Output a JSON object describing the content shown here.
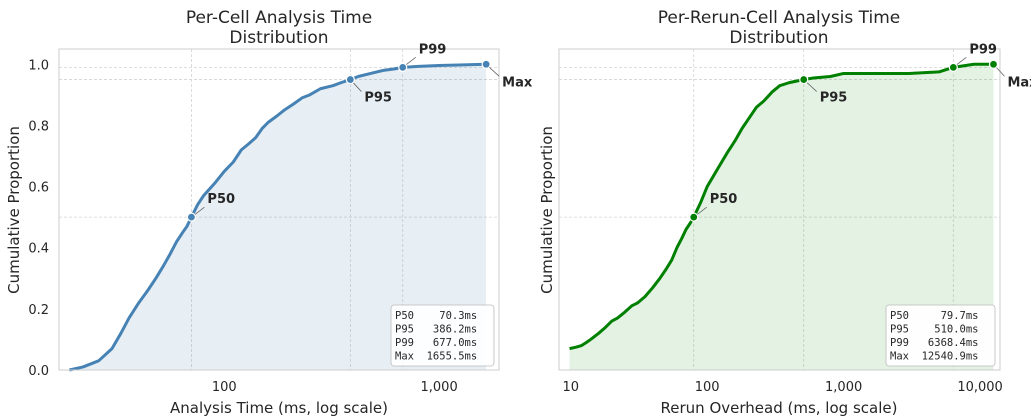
{
  "chart_data": [
    {
      "type": "line",
      "title_lines": [
        "Per-Cell Analysis Time",
        "Distribution"
      ],
      "xlabel": "Analysis Time (ms, log scale)",
      "ylabel": "Cumulative Proportion",
      "x_scale": "log",
      "xlim": [
        17,
        1900
      ],
      "ylim": [
        0,
        1.05
      ],
      "x_ticks": [
        {
          "value": 100,
          "label": "100"
        },
        {
          "value": 1000,
          "label": "1,000"
        }
      ],
      "y_ticks": [
        {
          "value": 0.0,
          "label": "0.0"
        },
        {
          "value": 0.2,
          "label": "0.2"
        },
        {
          "value": 0.4,
          "label": "0.4"
        },
        {
          "value": 0.6,
          "label": "0.6"
        },
        {
          "value": 0.8,
          "label": "0.8"
        },
        {
          "value": 1.0,
          "label": "1.0"
        }
      ],
      "color": "#4682b4",
      "fill_color": "#4682b4",
      "grid": true,
      "series": [
        {
          "x": [
            19,
            22,
            26,
            30,
            33,
            36,
            40,
            44,
            48,
            52,
            56,
            60,
            64,
            67,
            70.3,
            75,
            80,
            90,
            100,
            110,
            120,
            130,
            140,
            150,
            160,
            175,
            190,
            210,
            230,
            250,
            280,
            320,
            350,
            386.2,
            420,
            480,
            550,
            620,
            677,
            800,
            1000,
            1300,
            1655.5
          ],
          "y": [
            0.0,
            0.01,
            0.03,
            0.07,
            0.12,
            0.17,
            0.22,
            0.26,
            0.3,
            0.34,
            0.38,
            0.42,
            0.45,
            0.47,
            0.5,
            0.54,
            0.57,
            0.61,
            0.65,
            0.68,
            0.72,
            0.74,
            0.76,
            0.79,
            0.81,
            0.83,
            0.85,
            0.87,
            0.89,
            0.9,
            0.92,
            0.93,
            0.94,
            0.95,
            0.96,
            0.97,
            0.98,
            0.985,
            0.99,
            0.993,
            0.996,
            0.998,
            1.0
          ]
        }
      ],
      "markers": [
        {
          "label": "P50",
          "x": 70.3,
          "y": 0.5
        },
        {
          "label": "P95",
          "x": 386.2,
          "y": 0.95
        },
        {
          "label": "P99",
          "x": 677.0,
          "y": 0.99
        },
        {
          "label": "Max",
          "x": 1655.5,
          "y": 1.0
        }
      ],
      "stats_box": [
        "P50    70.3ms",
        "P95   386.2ms",
        "P99   677.0ms",
        "Max  1655.5ms"
      ]
    },
    {
      "type": "line",
      "title_lines": [
        "Per-Rerun-Cell Analysis Time",
        "Distribution"
      ],
      "xlabel": "Rerun Overhead (ms, log scale)",
      "ylabel": "Cumulative Proportion",
      "x_scale": "log",
      "xlim": [
        8.2,
        14000
      ],
      "ylim": [
        0,
        1.05
      ],
      "x_ticks": [
        {
          "value": 10,
          "label": "10"
        },
        {
          "value": 100,
          "label": "100"
        },
        {
          "value": 1000,
          "label": "1,000"
        },
        {
          "value": 10000,
          "label": "10,000"
        }
      ],
      "y_ticks": [],
      "color": "#008000",
      "fill_color": "#2e9e2e",
      "grid": true,
      "series": [
        {
          "x": [
            9.8,
            11,
            12,
            13,
            14,
            16,
            18,
            20,
            22,
            25,
            28,
            31,
            35,
            40,
            45,
            50,
            55,
            60,
            65,
            70,
            75,
            79.7,
            90,
            100,
            120,
            140,
            160,
            180,
            200,
            230,
            260,
            300,
            340,
            400,
            450,
            510,
            600,
            800,
            1000,
            1500,
            3000,
            5000,
            6368.4,
            9000,
            12540.9
          ],
          "y": [
            0.07,
            0.075,
            0.08,
            0.09,
            0.1,
            0.12,
            0.14,
            0.16,
            0.17,
            0.19,
            0.21,
            0.22,
            0.24,
            0.27,
            0.3,
            0.33,
            0.36,
            0.4,
            0.43,
            0.46,
            0.48,
            0.5,
            0.55,
            0.6,
            0.66,
            0.71,
            0.75,
            0.79,
            0.82,
            0.86,
            0.88,
            0.91,
            0.93,
            0.94,
            0.945,
            0.95,
            0.955,
            0.96,
            0.97,
            0.97,
            0.97,
            0.975,
            0.99,
            1.0,
            1.0
          ]
        }
      ],
      "markers": [
        {
          "label": "P50",
          "x": 79.7,
          "y": 0.5
        },
        {
          "label": "P95",
          "x": 510.0,
          "y": 0.95
        },
        {
          "label": "P99",
          "x": 6368.4,
          "y": 0.99
        },
        {
          "label": "Max",
          "x": 12540.9,
          "y": 1.0
        }
      ],
      "stats_box": [
        "P50     79.7ms",
        "P95    510.0ms",
        "P99   6368.4ms",
        "Max  12540.9ms"
      ]
    }
  ]
}
